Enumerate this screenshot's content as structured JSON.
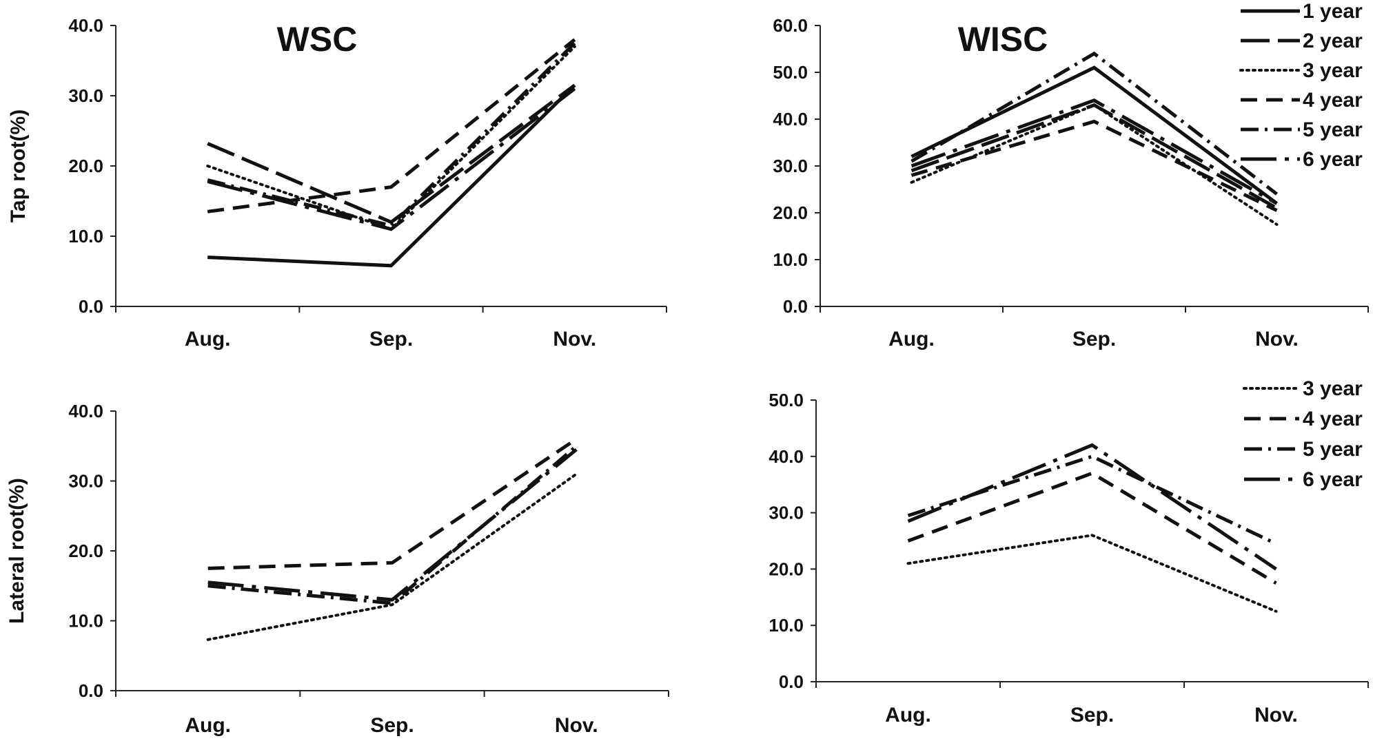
{
  "chart_data": [
    {
      "type": "line",
      "title": "WSC",
      "ylabel": "Tap root(%)",
      "xlabel": "",
      "ylim": [
        0,
        40
      ],
      "ytick_labels": [
        "0.0",
        "10.0",
        "20.0",
        "30.0",
        "40.0"
      ],
      "categories": [
        "Aug.",
        "Sep.",
        "Nov."
      ],
      "series": [
        {
          "name": "1 year",
          "style": "solid",
          "values": [
            7.0,
            5.8,
            31.5
          ]
        },
        {
          "name": "2 year",
          "style": "longdash",
          "values": [
            23.2,
            12.0,
            31.5
          ]
        },
        {
          "name": "3 year",
          "style": "dotted",
          "values": [
            20.0,
            11.0,
            37.0
          ]
        },
        {
          "name": "4 year",
          "style": "dash",
          "values": [
            13.5,
            17.0,
            38.0
          ]
        },
        {
          "name": "5 year",
          "style": "dashdot",
          "values": [
            18.0,
            11.5,
            37.5
          ]
        },
        {
          "name": "6 year",
          "style": "longdashdot",
          "values": [
            17.8,
            11.0,
            31.0
          ]
        }
      ]
    },
    {
      "type": "line",
      "title": "WISC",
      "ylabel": "",
      "xlabel": "",
      "ylim": [
        0,
        60
      ],
      "ytick_labels": [
        "0.0",
        "10.0",
        "20.0",
        "30.0",
        "40.0",
        "50.0",
        "60.0"
      ],
      "categories": [
        "Aug.",
        "Sep.",
        "Nov."
      ],
      "legend_position": "top-right",
      "series": [
        {
          "name": "1 year",
          "style": "solid",
          "values": [
            32.0,
            51.0,
            22.0
          ]
        },
        {
          "name": "2 year",
          "style": "longdash",
          "values": [
            29.0,
            43.0,
            21.0
          ]
        },
        {
          "name": "3 year",
          "style": "dotted",
          "values": [
            26.5,
            43.0,
            17.5
          ]
        },
        {
          "name": "4 year",
          "style": "dash",
          "values": [
            28.0,
            39.5,
            20.5
          ]
        },
        {
          "name": "5 year",
          "style": "dashdot",
          "values": [
            31.0,
            54.0,
            24.0
          ]
        },
        {
          "name": "6 year",
          "style": "longdashdot",
          "values": [
            30.0,
            44.0,
            22.0
          ]
        }
      ]
    },
    {
      "type": "line",
      "title": "",
      "ylabel": "Lateral root(%)",
      "xlabel": "",
      "ylim": [
        0,
        40
      ],
      "ytick_labels": [
        "0.0",
        "10.0",
        "20.0",
        "30.0",
        "40.0"
      ],
      "categories": [
        "Aug.",
        "Sep.",
        "Nov."
      ],
      "series": [
        {
          "name": "3 year",
          "style": "dotted",
          "values": [
            7.3,
            12.3,
            31.0
          ]
        },
        {
          "name": "4 year",
          "style": "dash",
          "values": [
            17.5,
            18.3,
            36.0
          ]
        },
        {
          "name": "5 year",
          "style": "dashdot",
          "values": [
            15.0,
            12.5,
            35.0
          ]
        },
        {
          "name": "6 year",
          "style": "longdashdot",
          "values": [
            15.5,
            13.0,
            34.5
          ]
        }
      ]
    },
    {
      "type": "line",
      "title": "",
      "ylabel": "",
      "xlabel": "",
      "ylim": [
        0,
        50
      ],
      "ytick_labels": [
        "0.0",
        "10.0",
        "20.0",
        "30.0",
        "40.0",
        "50.0"
      ],
      "categories": [
        "Aug.",
        "Sep.",
        "Nov."
      ],
      "legend_position": "top-right",
      "series": [
        {
          "name": "3 year",
          "style": "dotted",
          "values": [
            21.0,
            26.0,
            12.5
          ]
        },
        {
          "name": "4 year",
          "style": "dash",
          "values": [
            25.0,
            37.0,
            17.5
          ]
        },
        {
          "name": "5 year",
          "style": "dashdot",
          "values": [
            29.5,
            40.0,
            24.5
          ]
        },
        {
          "name": "6 year",
          "style": "longdashdot",
          "values": [
            28.5,
            42.0,
            20.0
          ]
        }
      ]
    }
  ]
}
